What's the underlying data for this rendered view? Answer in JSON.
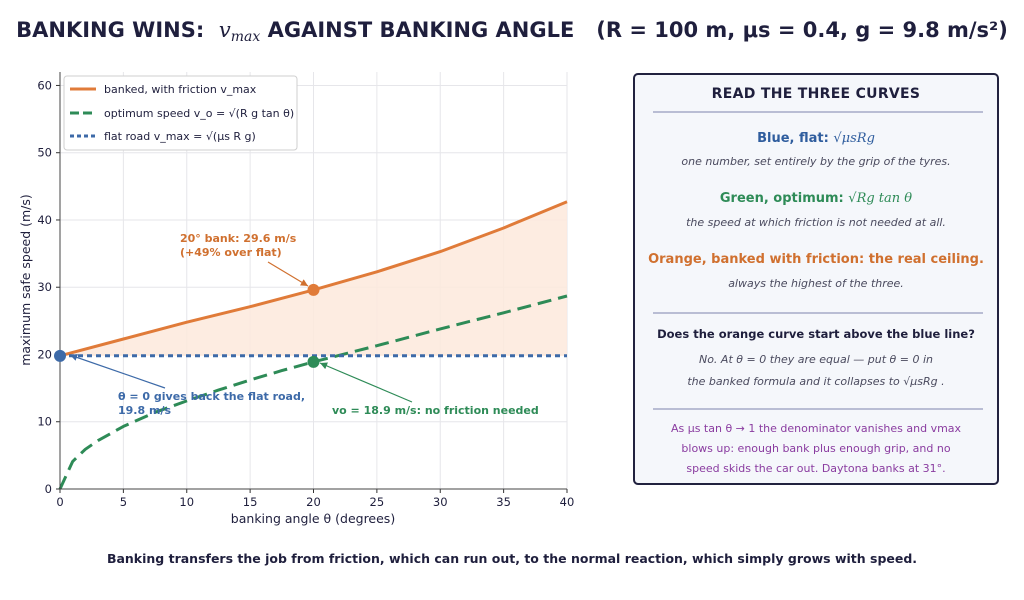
{
  "title": {
    "prefix": "BANKING WINS:",
    "var": "v",
    "var_sub": "max",
    "middle": "AGAINST BANKING ANGLE",
    "params": "(R = 100 m, μs = 0.4, g = 9.8 m/s²)"
  },
  "chart_data": {
    "type": "line",
    "xlabel": "banking angle  θ  (degrees)",
    "ylabel": "maximum safe speed  (m/s)",
    "xlim": [
      0,
      40
    ],
    "ylim": [
      0,
      62
    ],
    "xticks": [
      0,
      5,
      10,
      15,
      20,
      25,
      30,
      35,
      40
    ],
    "yticks": [
      0,
      10,
      20,
      30,
      40,
      50,
      60
    ],
    "grid": true,
    "legend_position": "top-left",
    "series": [
      {
        "name": "banked, with friction  v_max",
        "color": "#e07b39",
        "style": "solid",
        "x": [
          0,
          5,
          10,
          15,
          20,
          25,
          30,
          35,
          40
        ],
        "y": [
          19.8,
          22.3,
          24.8,
          27.1,
          29.6,
          32.3,
          35.3,
          38.8,
          42.7
        ]
      },
      {
        "name": "optimum speed  v_o = √(R g tan θ)",
        "color": "#2e8b57",
        "style": "dashed",
        "x": [
          0,
          1,
          2,
          3,
          5,
          7.5,
          10,
          12.5,
          15,
          17.5,
          20,
          25,
          30,
          35,
          40
        ],
        "y": [
          0,
          4.1,
          5.9,
          7.2,
          9.3,
          11.4,
          13.1,
          14.7,
          16.2,
          17.6,
          18.9,
          21.3,
          23.8,
          26.2,
          28.7
        ]
      },
      {
        "name": "flat road  v_max = √(μs R g)",
        "color": "#3d6aa8",
        "style": "dotted",
        "x": [
          0,
          40
        ],
        "y": [
          19.8,
          19.8
        ]
      }
    ],
    "markers": [
      {
        "x": 20,
        "y": 29.6,
        "color": "#e07b39"
      },
      {
        "x": 20,
        "y": 18.9,
        "color": "#2e8b57"
      },
      {
        "x": 0,
        "y": 19.8,
        "color": "#3d6aa8"
      }
    ],
    "annotations": [
      {
        "lines": [
          "20° bank: 29.6 m/s",
          "(+49% over flat)"
        ],
        "color": "#d0702f"
      },
      {
        "lines": [
          "θ = 0 gives back the flat road,",
          "19.8 m/s"
        ],
        "color": "#3d6aa8"
      },
      {
        "lines": [
          "vo = 18.9 m/s: no friction needed"
        ],
        "color": "#2e8b57"
      }
    ]
  },
  "panel": {
    "title": "READ THE THREE CURVES",
    "blue_head": "Blue, flat:",
    "blue_formula": "√μsRg",
    "blue_sub": "one number, set entirely by the grip of the tyres.",
    "green_head": "Green, optimum:",
    "green_formula": "√Rg tan θ",
    "green_sub": "the speed at which friction is not needed at all.",
    "orange_head": "Orange, banked with friction:  the real ceiling.",
    "orange_sub": "always the highest of the three.",
    "question": "Does the orange curve start above the blue line?",
    "answer_1": "No. At θ = 0 they are equal — put θ = 0 in",
    "answer_2": "the banked formula and it collapses to √μsRg .",
    "note_1": "As μs tan θ → 1 the denominator vanishes and vmax",
    "note_2": "blows up: enough bank plus enough grip, and no",
    "note_3": "speed skids the car out.   Daytona banks at 31°.",
    "colors": {
      "blue": "#2f5d9e",
      "green": "#2e8b57",
      "orange": "#d0702f",
      "purple": "#8a3ca0"
    }
  },
  "footer": "Banking transfers the job from friction, which can run out, to the normal reaction, which simply grows with speed."
}
